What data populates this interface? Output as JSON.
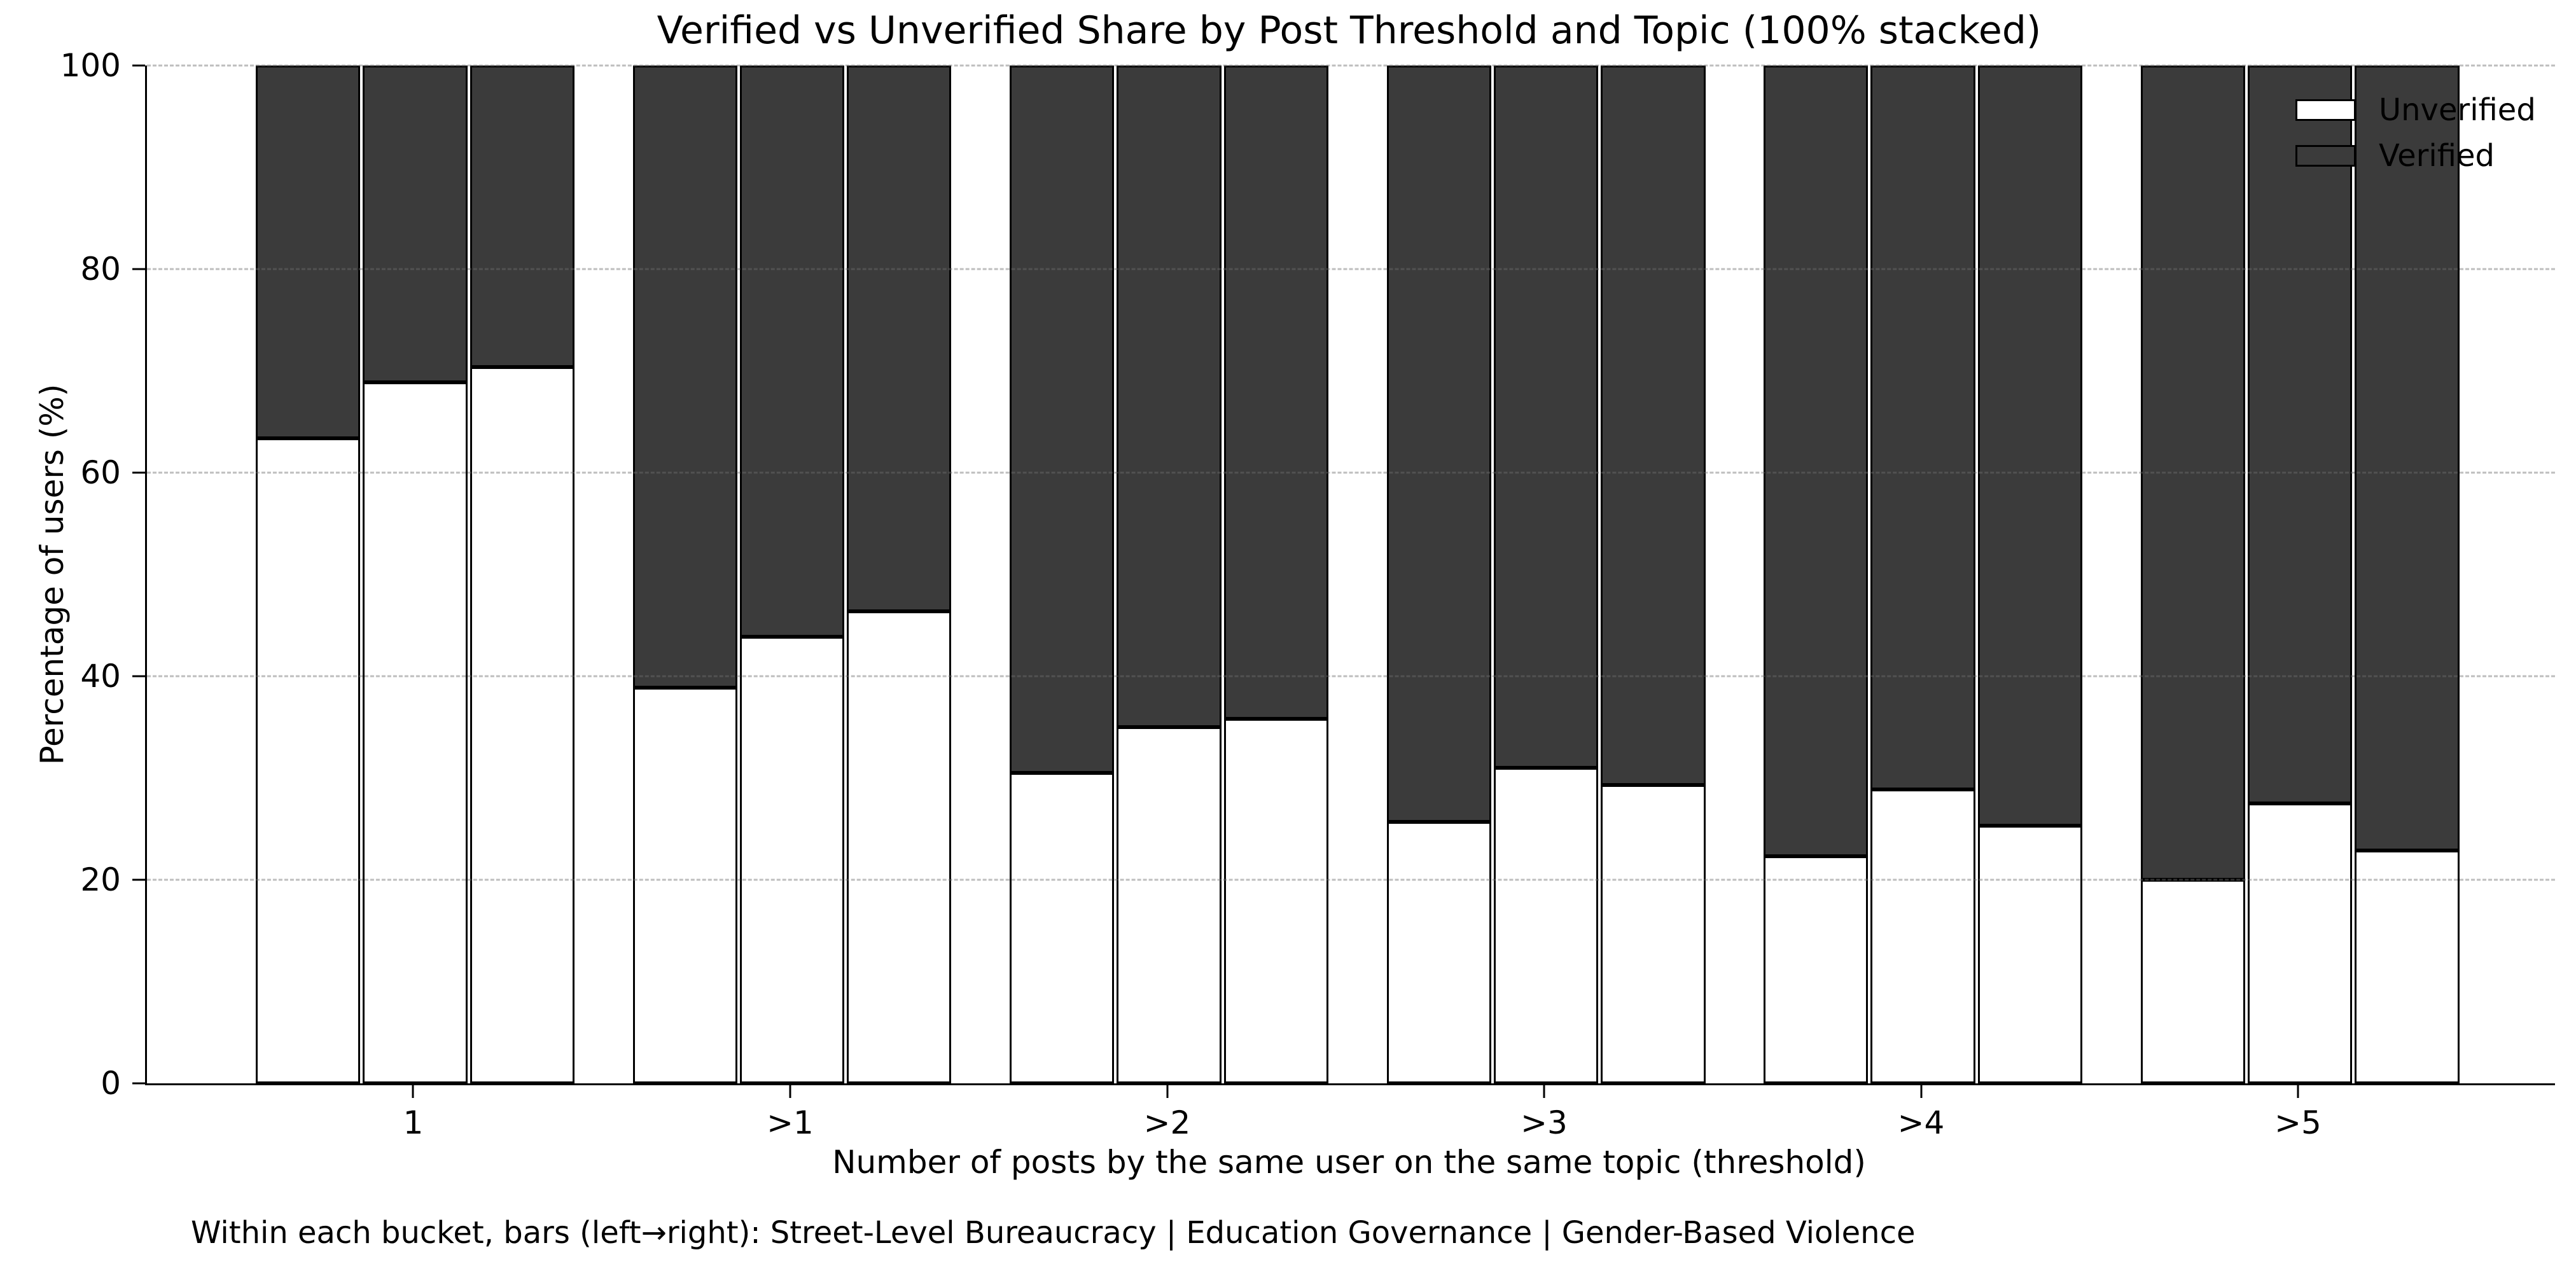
{
  "footnote": "Within each bucket, bars (left→right): Street-Level Bureaucracy | Education Governance | Gender-Based Violence",
  "colors": {
    "unverified_fill": "#ffffff",
    "verified_fill": "#3b3b3b",
    "bar_edge": "#000000",
    "grid": "#c8c8c8",
    "background": "#ffffff"
  },
  "chart_data": {
    "type": "bar",
    "subtype": "stacked-100-percent",
    "title": "Verified vs Unverified Share by Post Threshold and Topic (100% stacked)",
    "xlabel": "Number of posts by the same user on the same topic (threshold)",
    "ylabel": "Percentage of users (%)",
    "categories": [
      "1",
      ">1",
      ">2",
      ">3",
      ">4",
      ">5"
    ],
    "bars_per_category": [
      "Street-Level Bureaucracy",
      "Education Governance",
      "Gender-Based Violence"
    ],
    "series": [
      {
        "name": "Unverified",
        "color": "#ffffff",
        "values": [
          [
            63.4,
            68.9,
            70.4
          ],
          [
            38.9,
            43.9,
            46.4
          ],
          [
            30.5,
            35.0,
            35.8
          ],
          [
            25.7,
            31.0,
            29.3
          ],
          [
            22.3,
            28.9,
            25.3
          ],
          [
            20.0,
            27.5,
            22.9
          ]
        ]
      },
      {
        "name": "Verified",
        "color": "#3b3b3b",
        "values": [
          [
            36.6,
            31.1,
            29.6
          ],
          [
            61.1,
            56.1,
            53.6
          ],
          [
            69.5,
            65.0,
            64.2
          ],
          [
            74.3,
            69.0,
            70.7
          ],
          [
            77.7,
            71.1,
            74.7
          ],
          [
            80.0,
            72.5,
            77.1
          ]
        ]
      }
    ],
    "ylim": [
      0,
      100
    ],
    "yticks": [
      0,
      20,
      40,
      60,
      80,
      100
    ],
    "grid": "horizontal-dashed",
    "legend_position": "upper-right",
    "legend_entries": [
      "Unverified",
      "Verified"
    ]
  }
}
